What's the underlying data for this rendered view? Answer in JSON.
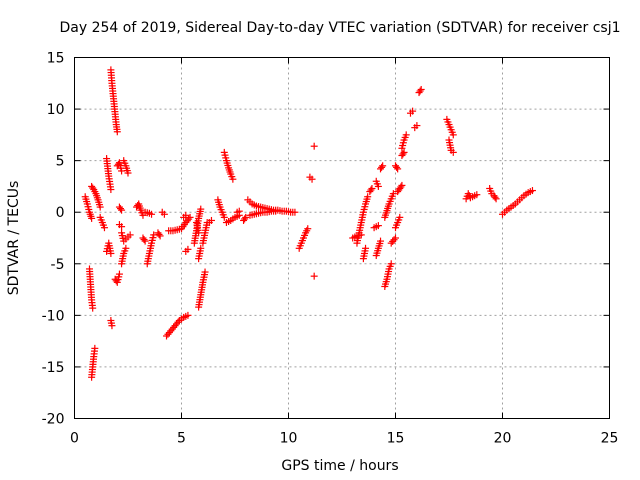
{
  "chart_data": {
    "type": "scatter",
    "title": "Day 254 of 2019, Sidereal Day-to-day VTEC variation (SDTVAR) for receiver csj1",
    "xlabel": "GPS time / hours",
    "ylabel": "SDTVAR / TECUs",
    "xlim": [
      0,
      25
    ],
    "ylim": [
      -20,
      15
    ],
    "xticks": [
      "0",
      "5",
      "10",
      "15",
      "20",
      "25"
    ],
    "yticks": [
      "15",
      "10",
      "5",
      "0",
      "-5",
      "-10",
      "-15",
      "-20"
    ],
    "grid": true,
    "marker": "plus",
    "color": "#ff0000",
    "series_segments": [
      [
        [
          0.5,
          1.5
        ],
        [
          0.6,
          0.8
        ],
        [
          0.7,
          0.0
        ],
        [
          0.8,
          -0.6
        ]
      ],
      [
        [
          0.7,
          -5.5
        ],
        [
          0.75,
          -7.0
        ],
        [
          0.8,
          -8.5
        ],
        [
          0.85,
          -9.3
        ]
      ],
      [
        [
          0.8,
          -16.0
        ],
        [
          0.85,
          -15.0
        ],
        [
          0.9,
          -14.0
        ],
        [
          0.95,
          -13.2
        ]
      ],
      [
        [
          0.8,
          2.5
        ],
        [
          0.9,
          2.2
        ],
        [
          1.0,
          1.8
        ],
        [
          1.1,
          1.2
        ],
        [
          1.2,
          0.5
        ]
      ],
      [
        [
          1.2,
          -0.5
        ],
        [
          1.3,
          -1.0
        ],
        [
          1.4,
          -1.5
        ]
      ],
      [
        [
          1.5,
          5.2
        ],
        [
          1.6,
          3.5
        ],
        [
          1.7,
          2.2
        ]
      ],
      [
        [
          1.7,
          13.8
        ],
        [
          1.75,
          12.5
        ],
        [
          1.8,
          11.5
        ],
        [
          1.85,
          10.5
        ],
        [
          1.9,
          9.5
        ],
        [
          1.95,
          8.5
        ],
        [
          2.0,
          7.8
        ]
      ],
      [
        [
          1.7,
          -10.5
        ],
        [
          1.75,
          -11.0
        ]
      ],
      [
        [
          1.5,
          -3.8
        ],
        [
          1.6,
          -3.0
        ],
        [
          1.7,
          -4.0
        ]
      ],
      [
        [
          1.9,
          -6.5
        ],
        [
          2.0,
          -6.8
        ],
        [
          2.1,
          -6.0
        ]
      ],
      [
        [
          2.0,
          4.5
        ],
        [
          2.1,
          4.8
        ],
        [
          2.2,
          4.0
        ]
      ],
      [
        [
          2.3,
          5.0
        ],
        [
          2.4,
          4.5
        ],
        [
          2.5,
          3.8
        ]
      ],
      [
        [
          2.2,
          -2.0
        ],
        [
          2.3,
          -2.8
        ],
        [
          2.4,
          -2.6
        ],
        [
          2.5,
          -2.4
        ],
        [
          2.6,
          -2.2
        ]
      ],
      [
        [
          2.2,
          -5.0
        ],
        [
          2.3,
          -4.0
        ],
        [
          2.4,
          -3.5
        ]
      ],
      [
        [
          2.1,
          -1.2
        ],
        [
          2.2,
          -1.4
        ]
      ],
      [
        [
          2.1,
          0.5
        ],
        [
          2.2,
          0.2
        ]
      ],
      [
        [
          2.9,
          0.5
        ],
        [
          3.0,
          0.8
        ],
        [
          3.1,
          0.2
        ],
        [
          3.2,
          -0.3
        ]
      ],
      [
        [
          3.3,
          0.0
        ],
        [
          3.5,
          -0.1
        ],
        [
          3.6,
          -0.2
        ]
      ],
      [
        [
          3.2,
          -2.5
        ],
        [
          3.3,
          -2.8
        ]
      ],
      [
        [
          3.4,
          -5.0
        ],
        [
          3.5,
          -4.0
        ],
        [
          3.6,
          -3.0
        ],
        [
          3.7,
          -2.2
        ]
      ],
      [
        [
          3.9,
          -2.0
        ],
        [
          4.0,
          -2.3
        ]
      ],
      [
        [
          4.1,
          0.0
        ],
        [
          4.2,
          -0.2
        ]
      ],
      [
        [
          4.3,
          -12.0
        ],
        [
          4.5,
          -11.5
        ],
        [
          4.7,
          -11.0
        ],
        [
          4.9,
          -10.5
        ],
        [
          5.1,
          -10.2
        ],
        [
          5.3,
          -10.0
        ]
      ],
      [
        [
          4.4,
          -1.8
        ],
        [
          4.6,
          -1.8
        ],
        [
          4.8,
          -1.7
        ],
        [
          5.0,
          -1.6
        ],
        [
          5.2,
          -1.0
        ],
        [
          5.4,
          -0.5
        ]
      ],
      [
        [
          5.1,
          -0.5
        ],
        [
          5.2,
          -0.3
        ]
      ],
      [
        [
          5.2,
          -3.8
        ],
        [
          5.3,
          -3.6
        ]
      ],
      [
        [
          5.6,
          -3.0
        ],
        [
          5.7,
          -1.8
        ],
        [
          5.8,
          -0.6
        ],
        [
          5.9,
          0.3
        ]
      ],
      [
        [
          5.7,
          -1.0
        ],
        [
          5.8,
          -2.0
        ]
      ],
      [
        [
          5.8,
          -9.2
        ],
        [
          5.9,
          -8.0
        ],
        [
          6.0,
          -6.8
        ],
        [
          6.1,
          -5.8
        ]
      ],
      [
        [
          5.8,
          -4.5
        ],
        [
          5.9,
          -3.5
        ]
      ],
      [
        [
          6.0,
          -3.0
        ],
        [
          6.1,
          -2.0
        ],
        [
          6.2,
          -1.0
        ]
      ],
      [
        [
          6.3,
          -1.0
        ],
        [
          6.4,
          -0.8
        ]
      ],
      [
        [
          6.7,
          1.2
        ],
        [
          6.8,
          0.5
        ],
        [
          6.9,
          0.0
        ],
        [
          7.0,
          -0.5
        ]
      ],
      [
        [
          7.0,
          5.8
        ],
        [
          7.1,
          5.0
        ],
        [
          7.2,
          4.3
        ],
        [
          7.3,
          3.7
        ],
        [
          7.4,
          3.2
        ]
      ],
      [
        [
          7.1,
          -1.0
        ],
        [
          7.3,
          -0.8
        ],
        [
          7.5,
          -0.5
        ],
        [
          7.7,
          -0.3
        ]
      ],
      [
        [
          7.6,
          0.0
        ],
        [
          7.7,
          0.1
        ]
      ],
      [
        [
          7.9,
          -0.8
        ],
        [
          8.0,
          -0.5
        ]
      ],
      [
        [
          8.1,
          1.2
        ],
        [
          8.3,
          0.8
        ],
        [
          8.5,
          0.6
        ],
        [
          8.7,
          0.5
        ],
        [
          8.9,
          0.4
        ],
        [
          9.1,
          0.3
        ],
        [
          9.3,
          0.2
        ],
        [
          9.5,
          0.2
        ],
        [
          9.7,
          0.1
        ],
        [
          9.9,
          0.1
        ],
        [
          10.1,
          0.0
        ],
        [
          10.3,
          0.0
        ]
      ],
      [
        [
          8.2,
          -0.3
        ],
        [
          8.4,
          -0.2
        ],
        [
          8.6,
          -0.1
        ],
        [
          8.8,
          0.0
        ],
        [
          9.0,
          0.0
        ],
        [
          9.2,
          0.1
        ],
        [
          9.4,
          0.1
        ]
      ],
      [
        [
          10.5,
          -3.5
        ],
        [
          10.6,
          -3.0
        ],
        [
          10.7,
          -2.5
        ],
        [
          10.8,
          -2.0
        ],
        [
          10.9,
          -1.6
        ]
      ],
      [
        [
          11.0,
          3.4
        ],
        [
          11.1,
          3.2
        ]
      ],
      [
        [
          11.2,
          6.4
        ]
      ],
      [
        [
          11.2,
          -6.2
        ]
      ],
      [
        [
          13.0,
          -2.5
        ],
        [
          13.2,
          -2.3
        ],
        [
          13.4,
          -2.2
        ]
      ],
      [
        [
          13.2,
          -3.0
        ],
        [
          13.3,
          -2.0
        ],
        [
          13.4,
          -1.0
        ],
        [
          13.5,
          0.0
        ],
        [
          13.6,
          0.8
        ],
        [
          13.7,
          1.5
        ]
      ],
      [
        [
          13.5,
          -4.5
        ],
        [
          13.6,
          -3.5
        ]
      ],
      [
        [
          13.8,
          2.0
        ],
        [
          13.9,
          2.3
        ]
      ],
      [
        [
          14.0,
          -1.5
        ],
        [
          14.2,
          -1.3
        ]
      ],
      [
        [
          14.1,
          -4.2
        ],
        [
          14.2,
          -3.5
        ],
        [
          14.3,
          -2.8
        ]
      ],
      [
        [
          14.1,
          3.0
        ],
        [
          14.2,
          2.5
        ]
      ],
      [
        [
          14.3,
          4.2
        ],
        [
          14.4,
          4.5
        ]
      ],
      [
        [
          14.5,
          -7.2
        ],
        [
          14.6,
          -6.5
        ],
        [
          14.7,
          -5.5
        ],
        [
          14.8,
          -5.0
        ]
      ],
      [
        [
          14.5,
          -0.5
        ],
        [
          14.7,
          0.8
        ],
        [
          14.9,
          1.8
        ]
      ],
      [
        [
          14.8,
          -3.0
        ],
        [
          15.0,
          -2.5
        ]
      ],
      [
        [
          15.0,
          4.5
        ],
        [
          15.1,
          4.2
        ]
      ],
      [
        [
          15.0,
          -1.5
        ],
        [
          15.1,
          -1.0
        ],
        [
          15.2,
          -0.5
        ]
      ],
      [
        [
          15.1,
          2.0
        ],
        [
          15.2,
          2.3
        ],
        [
          15.3,
          2.6
        ]
      ],
      [
        [
          15.3,
          6.2
        ],
        [
          15.4,
          7.0
        ],
        [
          15.5,
          7.5
        ]
      ],
      [
        [
          15.3,
          5.5
        ],
        [
          15.4,
          5.8
        ]
      ],
      [
        [
          15.7,
          9.6
        ],
        [
          15.8,
          9.8
        ]
      ],
      [
        [
          15.9,
          8.2
        ],
        [
          16.0,
          8.4
        ]
      ],
      [
        [
          16.1,
          11.6
        ],
        [
          16.2,
          11.9
        ]
      ],
      [
        [
          17.4,
          9.0
        ],
        [
          17.5,
          8.5
        ],
        [
          17.6,
          8.0
        ],
        [
          17.7,
          7.5
        ]
      ],
      [
        [
          17.5,
          7.0
        ],
        [
          17.6,
          6.0
        ],
        [
          17.7,
          5.8
        ]
      ],
      [
        [
          18.3,
          1.3
        ],
        [
          18.4,
          1.8
        ],
        [
          18.5,
          1.4
        ],
        [
          18.6,
          1.5
        ],
        [
          18.7,
          1.6
        ],
        [
          18.8,
          1.7
        ]
      ],
      [
        [
          19.4,
          2.3
        ],
        [
          19.5,
          1.8
        ],
        [
          19.6,
          1.6
        ],
        [
          19.7,
          1.3
        ]
      ],
      [
        [
          20.0,
          -0.2
        ],
        [
          20.2,
          0.2
        ],
        [
          20.4,
          0.5
        ],
        [
          20.6,
          0.8
        ],
        [
          20.8,
          1.2
        ],
        [
          21.0,
          1.6
        ],
        [
          21.2,
          1.9
        ],
        [
          21.4,
          2.1
        ]
      ]
    ]
  }
}
